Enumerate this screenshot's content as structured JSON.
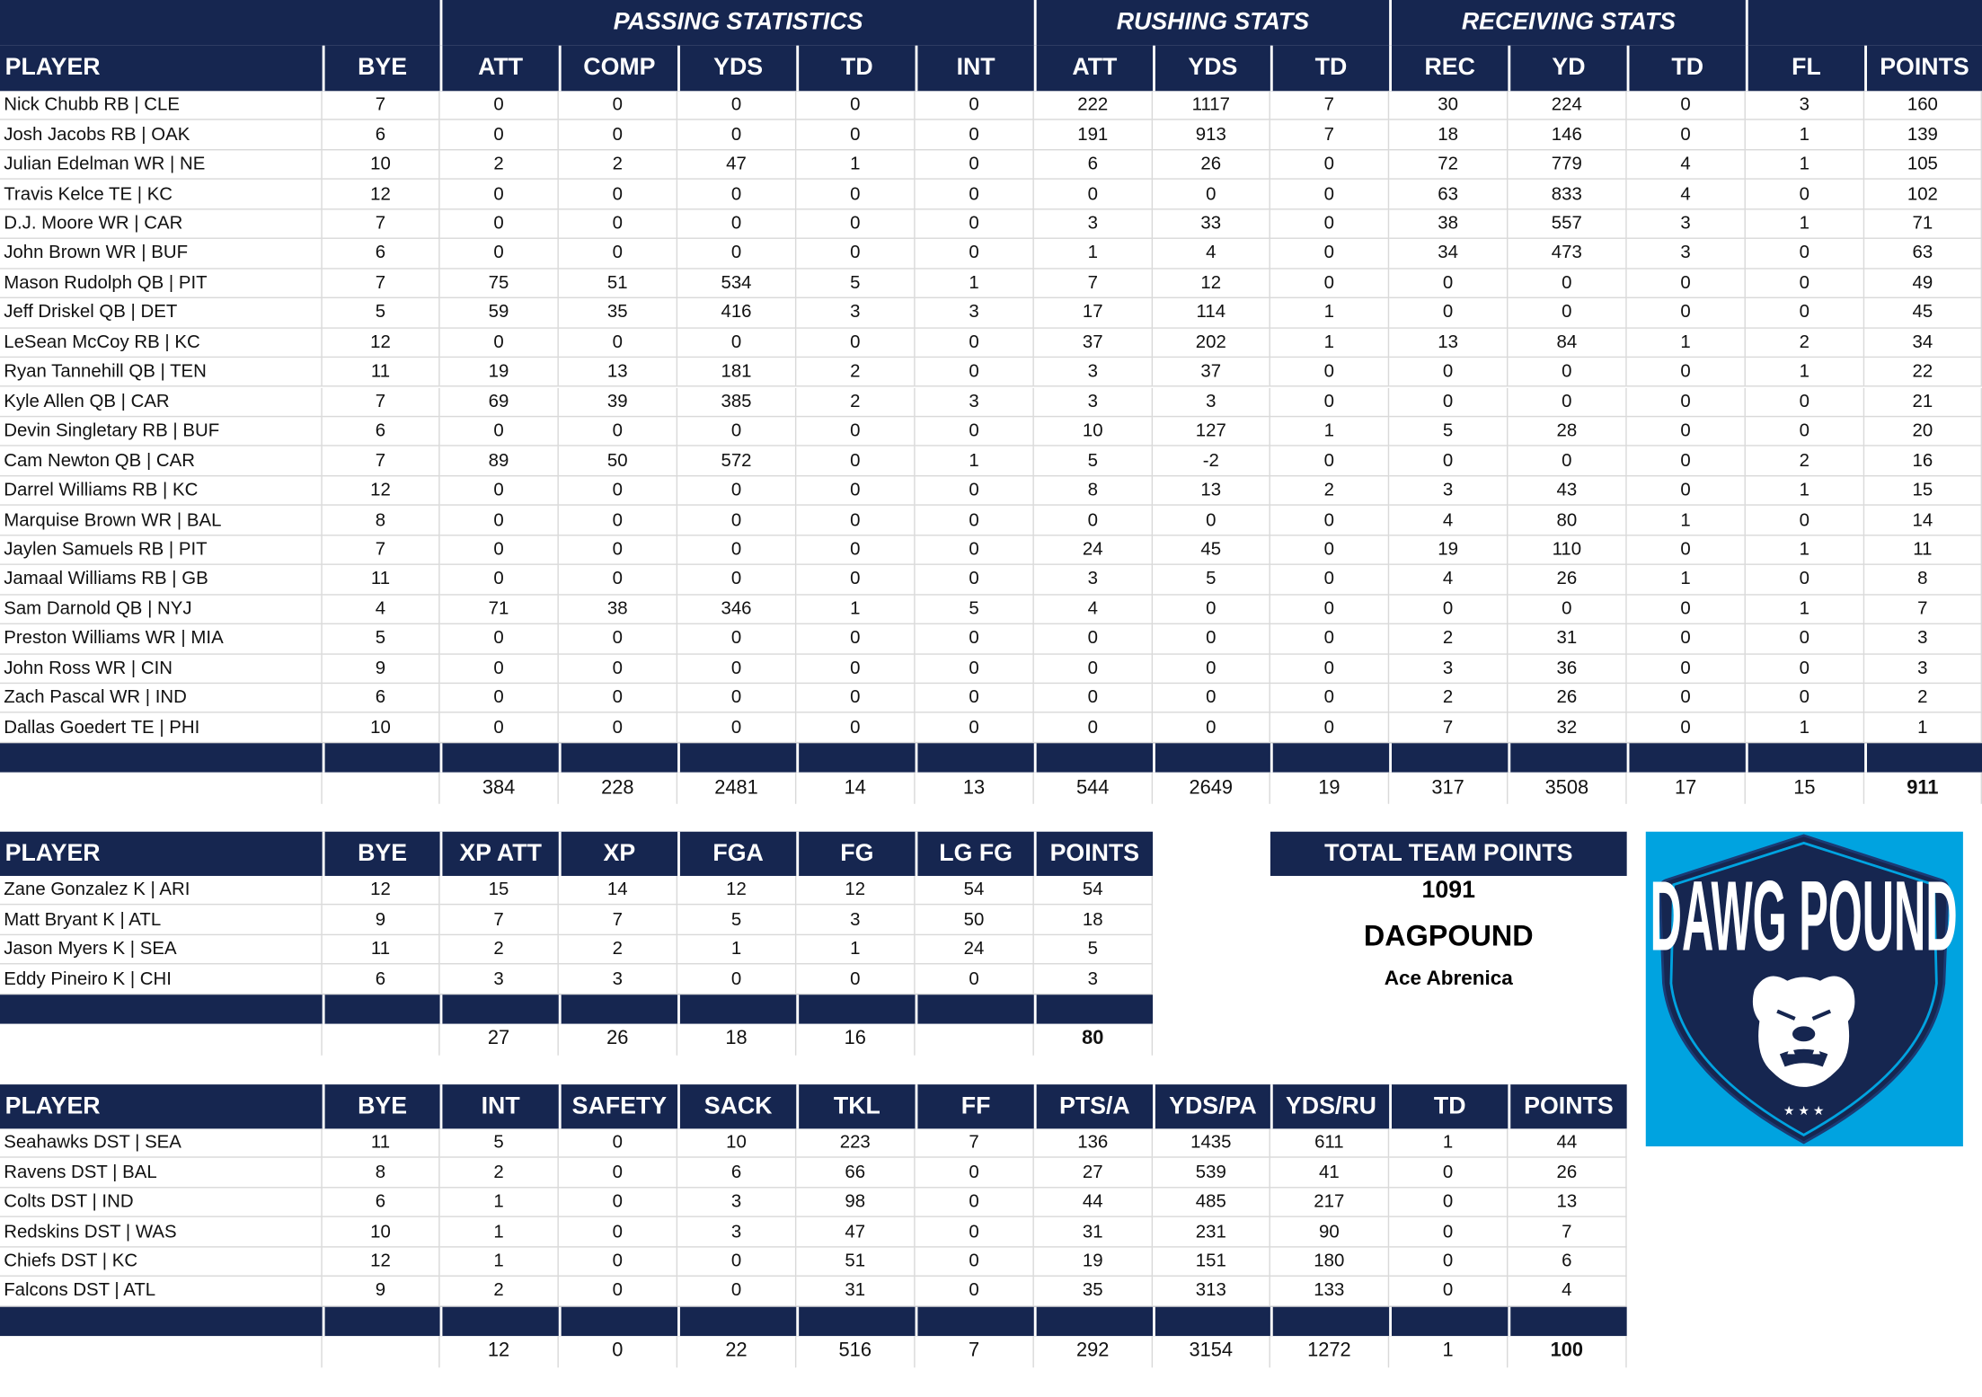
{
  "colors": {
    "header_navy": "#162650",
    "logo_blue": "#00a3e0",
    "grid": "#d9d9d9"
  },
  "offense": {
    "groups": [
      "PASSING STATISTICS",
      "RUSHING STATS",
      "RECEIVING STATS"
    ],
    "headers": [
      "PLAYER",
      "BYE",
      "ATT",
      "COMP",
      "YDS",
      "TD",
      "INT",
      "ATT",
      "YDS",
      "TD",
      "REC",
      "YD",
      "TD",
      "FL",
      "POINTS"
    ],
    "rows": [
      [
        "Nick Chubb RB | CLE",
        "7",
        "0",
        "0",
        "0",
        "0",
        "0",
        "222",
        "1117",
        "7",
        "30",
        "224",
        "0",
        "3",
        "160"
      ],
      [
        "Josh Jacobs RB | OAK",
        "6",
        "0",
        "0",
        "0",
        "0",
        "0",
        "191",
        "913",
        "7",
        "18",
        "146",
        "0",
        "1",
        "139"
      ],
      [
        "Julian Edelman WR | NE",
        "10",
        "2",
        "2",
        "47",
        "1",
        "0",
        "6",
        "26",
        "0",
        "72",
        "779",
        "4",
        "1",
        "105"
      ],
      [
        "Travis Kelce TE | KC",
        "12",
        "0",
        "0",
        "0",
        "0",
        "0",
        "0",
        "0",
        "0",
        "63",
        "833",
        "4",
        "0",
        "102"
      ],
      [
        "D.J. Moore WR | CAR",
        "7",
        "0",
        "0",
        "0",
        "0",
        "0",
        "3",
        "33",
        "0",
        "38",
        "557",
        "3",
        "1",
        "71"
      ],
      [
        "John Brown WR | BUF",
        "6",
        "0",
        "0",
        "0",
        "0",
        "0",
        "1",
        "4",
        "0",
        "34",
        "473",
        "3",
        "0",
        "63"
      ],
      [
        "Mason Rudolph QB | PIT",
        "7",
        "75",
        "51",
        "534",
        "5",
        "1",
        "7",
        "12",
        "0",
        "0",
        "0",
        "0",
        "0",
        "49"
      ],
      [
        "Jeff Driskel QB | DET",
        "5",
        "59",
        "35",
        "416",
        "3",
        "3",
        "17",
        "114",
        "1",
        "0",
        "0",
        "0",
        "0",
        "45"
      ],
      [
        "LeSean McCoy RB | KC",
        "12",
        "0",
        "0",
        "0",
        "0",
        "0",
        "37",
        "202",
        "1",
        "13",
        "84",
        "1",
        "2",
        "34"
      ],
      [
        "Ryan Tannehill QB | TEN",
        "11",
        "19",
        "13",
        "181",
        "2",
        "0",
        "3",
        "37",
        "0",
        "0",
        "0",
        "0",
        "1",
        "22"
      ],
      [
        "Kyle Allen QB | CAR",
        "7",
        "69",
        "39",
        "385",
        "2",
        "3",
        "3",
        "3",
        "0",
        "0",
        "0",
        "0",
        "0",
        "21"
      ],
      [
        "Devin Singletary RB | BUF",
        "6",
        "0",
        "0",
        "0",
        "0",
        "0",
        "10",
        "127",
        "1",
        "5",
        "28",
        "0",
        "0",
        "20"
      ],
      [
        "Cam Newton QB | CAR",
        "7",
        "89",
        "50",
        "572",
        "0",
        "1",
        "5",
        "-2",
        "0",
        "0",
        "0",
        "0",
        "2",
        "16"
      ],
      [
        "Darrel Williams RB | KC",
        "12",
        "0",
        "0",
        "0",
        "0",
        "0",
        "8",
        "13",
        "2",
        "3",
        "43",
        "0",
        "1",
        "15"
      ],
      [
        "Marquise Brown WR | BAL",
        "8",
        "0",
        "0",
        "0",
        "0",
        "0",
        "0",
        "0",
        "0",
        "4",
        "80",
        "1",
        "0",
        "14"
      ],
      [
        "Jaylen Samuels RB | PIT",
        "7",
        "0",
        "0",
        "0",
        "0",
        "0",
        "24",
        "45",
        "0",
        "19",
        "110",
        "0",
        "1",
        "11"
      ],
      [
        "Jamaal Williams RB | GB",
        "11",
        "0",
        "0",
        "0",
        "0",
        "0",
        "3",
        "5",
        "0",
        "4",
        "26",
        "1",
        "0",
        "8"
      ],
      [
        "Sam Darnold QB | NYJ",
        "4",
        "71",
        "38",
        "346",
        "1",
        "5",
        "4",
        "0",
        "0",
        "0",
        "0",
        "0",
        "1",
        "7"
      ],
      [
        "Preston Williams WR | MIA",
        "5",
        "0",
        "0",
        "0",
        "0",
        "0",
        "0",
        "0",
        "0",
        "2",
        "31",
        "0",
        "0",
        "3"
      ],
      [
        "John Ross WR | CIN",
        "9",
        "0",
        "0",
        "0",
        "0",
        "0",
        "0",
        "0",
        "0",
        "3",
        "36",
        "0",
        "0",
        "3"
      ],
      [
        "Zach Pascal WR | IND",
        "6",
        "0",
        "0",
        "0",
        "0",
        "0",
        "0",
        "0",
        "0",
        "2",
        "26",
        "0",
        "0",
        "2"
      ],
      [
        "Dallas Goedert TE | PHI",
        "10",
        "0",
        "0",
        "0",
        "0",
        "0",
        "0",
        "0",
        "0",
        "7",
        "32",
        "0",
        "1",
        "1"
      ]
    ],
    "totals": [
      "",
      "",
      "384",
      "228",
      "2481",
      "14",
      "13",
      "544",
      "2649",
      "19",
      "317",
      "3508",
      "17",
      "15",
      "911"
    ]
  },
  "kickers": {
    "headers": [
      "PLAYER",
      "BYE",
      "XP ATT",
      "XP",
      "FGA",
      "FG",
      "LG FG",
      "POINTS"
    ],
    "rows": [
      [
        "Zane Gonzalez K | ARI",
        "12",
        "15",
        "14",
        "12",
        "12",
        "54",
        "54"
      ],
      [
        "Matt Bryant K | ATL",
        "9",
        "7",
        "7",
        "5",
        "3",
        "50",
        "18"
      ],
      [
        "Jason Myers K | SEA",
        "11",
        "2",
        "2",
        "1",
        "1",
        "24",
        "5"
      ],
      [
        "Eddy Pineiro K | CHI",
        "6",
        "3",
        "3",
        "0",
        "0",
        "0",
        "3"
      ]
    ],
    "totals": [
      "",
      "",
      "27",
      "26",
      "18",
      "16",
      "",
      "80"
    ]
  },
  "defense": {
    "headers": [
      "PLAYER",
      "BYE",
      "INT",
      "SAFETY",
      "SACK",
      "TKL",
      "FF",
      "PTS/A",
      "YDS/PA",
      "YDS/RU",
      "TD",
      "POINTS"
    ],
    "rows": [
      [
        "Seahawks DST | SEA",
        "11",
        "5",
        "0",
        "10",
        "223",
        "7",
        "136",
        "1435",
        "611",
        "1",
        "44"
      ],
      [
        "Ravens DST | BAL",
        "8",
        "2",
        "0",
        "6",
        "66",
        "0",
        "27",
        "539",
        "41",
        "0",
        "26"
      ],
      [
        "Colts DST | IND",
        "6",
        "1",
        "0",
        "3",
        "98",
        "0",
        "44",
        "485",
        "217",
        "0",
        "13"
      ],
      [
        "Redskins DST | WAS",
        "10",
        "1",
        "0",
        "3",
        "47",
        "0",
        "31",
        "231",
        "90",
        "0",
        "7"
      ],
      [
        "Chiefs DST | KC",
        "12",
        "1",
        "0",
        "0",
        "51",
        "0",
        "19",
        "151",
        "180",
        "0",
        "6"
      ],
      [
        "Falcons DST | ATL",
        "9",
        "2",
        "0",
        "0",
        "31",
        "0",
        "35",
        "313",
        "133",
        "0",
        "4"
      ]
    ],
    "totals": [
      "",
      "",
      "12",
      "0",
      "22",
      "516",
      "7",
      "292",
      "3154",
      "1272",
      "1",
      "100"
    ]
  },
  "team_summary": {
    "title": "TOTAL TEAM POINTS",
    "total_points": "1091",
    "team_name": "DAGPOUND",
    "owner": "Ace Abrenica"
  },
  "logo": {
    "text": "DAWG POUND",
    "icon": "bulldog-shield-icon"
  }
}
